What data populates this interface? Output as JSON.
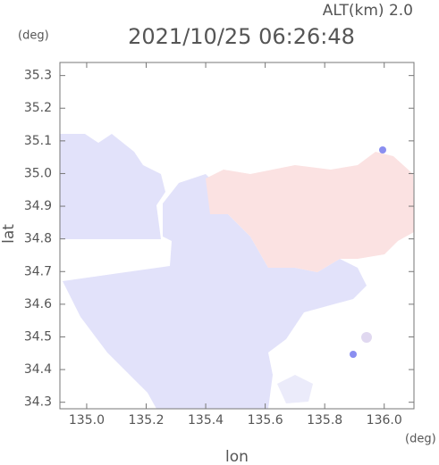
{
  "chart_data": {
    "type": "map",
    "title": "2021/10/25 06:26:48",
    "altitude_label": "ALT(km) 2.0",
    "x_label": "lon",
    "y_label": "lat",
    "x_unit": "(deg)",
    "y_unit": "(deg)",
    "xlim": [
      134.91,
      136.1
    ],
    "ylim": [
      34.28,
      35.34
    ],
    "xticks": [
      {
        "value": 135,
        "label": "135.0"
      },
      135.2,
      135.4,
      135.6,
      135.8,
      {
        "value": 136,
        "label": "136.0"
      }
    ],
    "yticks": [
      35.3,
      35.2,
      35.1,
      {
        "value": 35,
        "label": "35.0"
      },
      34.9,
      34.8,
      34.7,
      34.6,
      34.5,
      34.4,
      34.3
    ]
  }
}
